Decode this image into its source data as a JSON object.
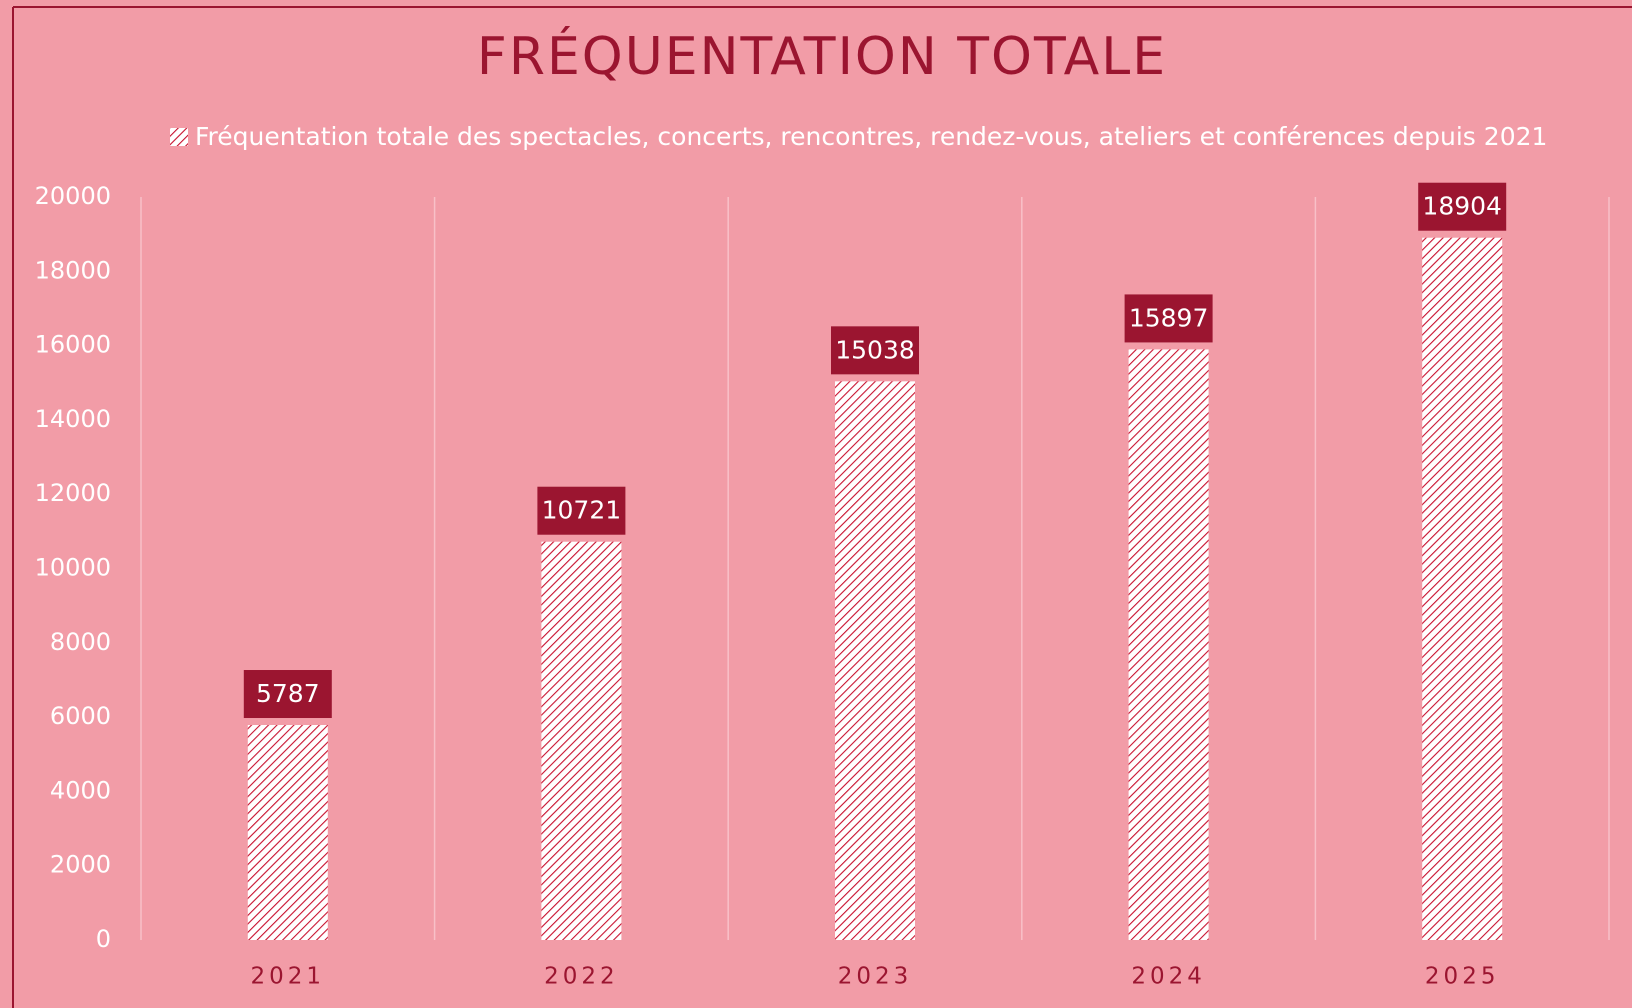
{
  "chart_data": {
    "type": "bar",
    "title": "FRÉQUENTATION TOTALE",
    "categories": [
      "2021",
      "2022",
      "2023",
      "2024",
      "2025"
    ],
    "series": [
      {
        "name": "Fréquentation totale des spectacles, concerts, rencontres, rendez-vous, ateliers et conférences depuis 2021",
        "color": "#c8102e",
        "values": [
          5787,
          10721,
          15038,
          15897,
          18904
        ]
      }
    ],
    "ylim": [
      0,
      20000
    ],
    "yticks": [
      0,
      2000,
      4000,
      6000,
      8000,
      10000,
      12000,
      14000,
      16000,
      18000,
      20000
    ],
    "grid": false,
    "legend": "top"
  }
}
